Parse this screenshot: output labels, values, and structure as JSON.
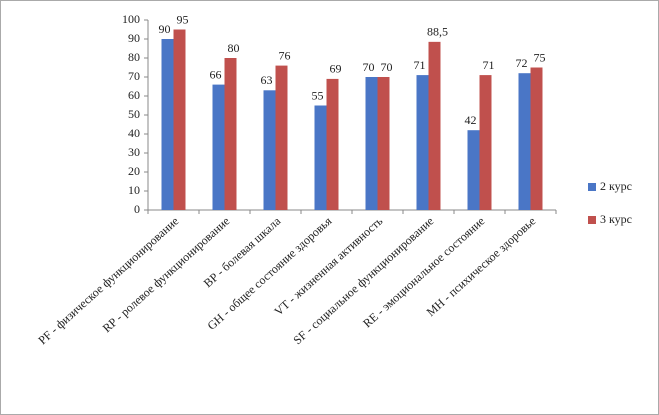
{
  "chart_data": {
    "type": "bar",
    "categories": [
      "PF - физическое функционирование",
      "RP - ролевое функционирование",
      "BP - болевая шкала",
      "GH - общее состояние здоровья",
      "VT - жизненная активность",
      "SF - социальное функционирование",
      "RE - эмоциональное состояние",
      "MH - психическое здоровье"
    ],
    "series": [
      {
        "name": "2 курс",
        "color": "#4a76c6",
        "values": [
          90,
          66,
          63,
          55,
          70,
          71,
          42,
          72
        ]
      },
      {
        "name": "3 курс",
        "color": "#c0504d",
        "values": [
          95,
          80,
          76,
          69,
          70,
          88.5,
          71,
          75
        ],
        "value_labels": [
          "95",
          "80",
          "76",
          "69",
          "70",
          "88,5",
          "71",
          "75"
        ]
      }
    ],
    "ylim": [
      0,
      100
    ],
    "yticks": [
      0,
      10,
      20,
      30,
      40,
      50,
      60,
      70,
      80,
      90,
      100
    ],
    "grid": false,
    "legend": "right"
  }
}
